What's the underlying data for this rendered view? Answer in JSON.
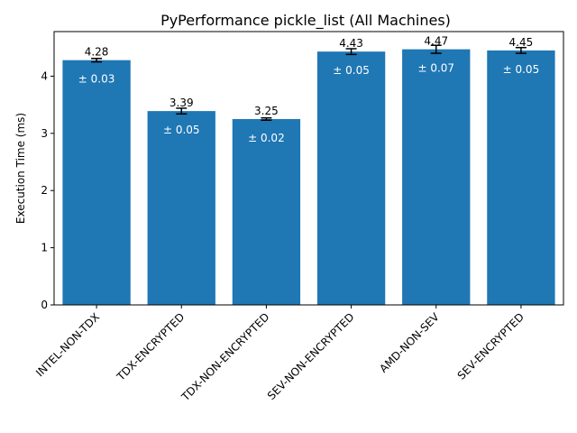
{
  "chart_data": {
    "type": "bar",
    "title": "PyPerformance pickle_list (All Machines)",
    "xlabel": "",
    "ylabel": "Execution Time (ms)",
    "categories": [
      "INTEL-NON-TDX",
      "TDX-ENCRYPTED",
      "TDX-NON-ENCRYPTED",
      "SEV-NON-ENCRYPTED",
      "AMD-NON-SEV",
      "SEV-ENCRYPTED"
    ],
    "values": [
      4.28,
      3.39,
      3.25,
      4.43,
      4.47,
      4.45
    ],
    "errors": [
      0.03,
      0.05,
      0.02,
      0.05,
      0.07,
      0.05
    ],
    "value_labels": [
      "4.28",
      "3.39",
      "3.25",
      "4.43",
      "4.47",
      "4.45"
    ],
    "error_labels": [
      "± 0.03",
      "± 0.05",
      "± 0.02",
      "± 0.05",
      "± 0.07",
      "± 0.05"
    ],
    "yticks": [
      0,
      1,
      2,
      3,
      4
    ],
    "ylim": [
      0,
      4.78
    ],
    "grid": false,
    "bar_color": "#1f77b4",
    "error_label_color": "#ffffff"
  }
}
